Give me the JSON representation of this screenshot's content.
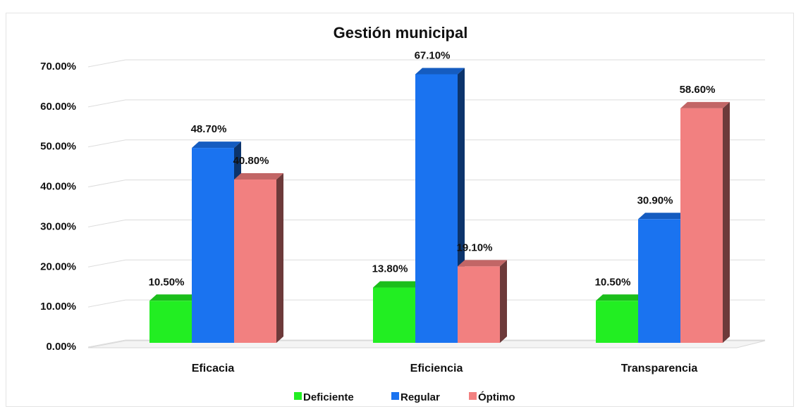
{
  "chart_data": {
    "type": "bar",
    "title": "Gestión municipal",
    "xlabel": "",
    "ylabel": "",
    "categories": [
      "Eficacia",
      "Eficiencia",
      "Transparencia"
    ],
    "ylim": [
      0,
      70
    ],
    "yticks": [
      0,
      10,
      20,
      30,
      40,
      50,
      60,
      70
    ],
    "ytick_labels": [
      "0.00%",
      "10.00%",
      "20.00%",
      "30.00%",
      "40.00%",
      "50.00%",
      "60.00%",
      "70.00%"
    ],
    "grid": true,
    "legend_position": "bottom",
    "series": [
      {
        "name": "Deficiente",
        "color": "#22ee22",
        "values": [
          10.5,
          13.8,
          10.5
        ],
        "labels": [
          "10.50%",
          "13.80%",
          "10.50%"
        ]
      },
      {
        "name": "Regular",
        "color": "#1a73f0",
        "values": [
          48.7,
          67.1,
          30.9
        ],
        "labels": [
          "48.70%",
          "67.10%",
          "30.90%"
        ]
      },
      {
        "name": "Óptimo",
        "color": "#f28080",
        "values": [
          40.8,
          19.1,
          58.6
        ],
        "labels": [
          "40.80%",
          "19.10%",
          "58.60%"
        ]
      }
    ]
  }
}
